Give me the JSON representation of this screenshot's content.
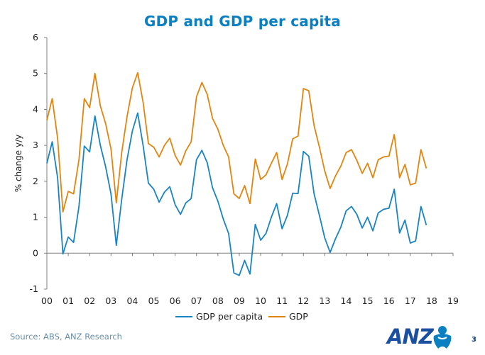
{
  "colors": {
    "title": "#0a7fc1",
    "gdp_per_capita": "#1a83c2",
    "gdp": "#e0860f",
    "brand": "#1b4fa0",
    "accent": "#0a7fc1"
  },
  "footer": {
    "source": "Source: ABS, ANZ Research",
    "page_number": "3",
    "logo_text": "ANZ"
  },
  "chart_data": {
    "type": "line",
    "title": "GDP and GDP per capita",
    "xlabel": "",
    "ylabel": "% change y/y",
    "xlim": [
      0,
      19
    ],
    "ylim": [
      -1,
      6
    ],
    "yticks": [
      -1,
      0,
      1,
      2,
      3,
      4,
      5,
      6
    ],
    "xtick_labels": [
      "00",
      "01",
      "02",
      "03",
      "04",
      "05",
      "06",
      "07",
      "08",
      "09",
      "10",
      "11",
      "12",
      "13",
      "14",
      "15",
      "16",
      "17",
      "18",
      "19"
    ],
    "grid": false,
    "legend": "bottom-center",
    "series": [
      {
        "name": "GDP per capita",
        "x": [
          0,
          0.25,
          0.5,
          0.75,
          1,
          1.25,
          1.5,
          1.75,
          2,
          2.25,
          2.5,
          2.75,
          3,
          3.25,
          3.5,
          3.75,
          4,
          4.25,
          4.5,
          4.75,
          5,
          5.25,
          5.5,
          5.75,
          6,
          6.25,
          6.5,
          6.75,
          7,
          7.25,
          7.5,
          7.75,
          8,
          8.25,
          8.5,
          8.75,
          9,
          9.25,
          9.5,
          9.75,
          10,
          10.25,
          10.5,
          10.75,
          11,
          11.25,
          11.5,
          11.75,
          12,
          12.25,
          12.5,
          12.75,
          13,
          13.25,
          13.5,
          13.75,
          14,
          14.25,
          14.5,
          14.75,
          15,
          15.25,
          15.5,
          15.75,
          16,
          16.25,
          16.5,
          16.75,
          17,
          17.25,
          17.5,
          17.75
        ],
        "values": [
          2.5,
          3.1,
          2.1,
          -0.02,
          0.45,
          0.3,
          1.3,
          2.98,
          2.82,
          3.82,
          3.0,
          2.4,
          1.65,
          0.22,
          1.5,
          2.6,
          3.4,
          3.9,
          3.0,
          1.95,
          1.78,
          1.42,
          1.7,
          1.85,
          1.35,
          1.08,
          1.4,
          1.52,
          2.6,
          2.86,
          2.52,
          1.82,
          1.45,
          0.95,
          0.55,
          -0.55,
          -0.62,
          -0.2,
          -0.58,
          0.8,
          0.36,
          0.55,
          1.0,
          1.38,
          0.68,
          1.05,
          1.67,
          1.66,
          2.83,
          2.7,
          1.65,
          1.05,
          0.42,
          0.02,
          0.4,
          0.72,
          1.18,
          1.3,
          1.08,
          0.7,
          1.0,
          0.62,
          1.12,
          1.22,
          1.25,
          1.78,
          0.56,
          0.92,
          0.28,
          0.34,
          1.3,
          0.78
        ]
      },
      {
        "name": "GDP",
        "x": [
          0,
          0.25,
          0.5,
          0.75,
          1,
          1.25,
          1.5,
          1.75,
          2,
          2.25,
          2.5,
          2.75,
          3,
          3.25,
          3.5,
          3.75,
          4,
          4.25,
          4.5,
          4.75,
          5,
          5.25,
          5.5,
          5.75,
          6,
          6.25,
          6.5,
          6.75,
          7,
          7.25,
          7.5,
          7.75,
          8,
          8.25,
          8.5,
          8.75,
          9,
          9.25,
          9.5,
          9.75,
          10,
          10.25,
          10.5,
          10.75,
          11,
          11.25,
          11.5,
          11.75,
          12,
          12.25,
          12.5,
          12.75,
          13,
          13.25,
          13.5,
          13.75,
          14,
          14.25,
          14.5,
          14.75,
          15,
          15.25,
          15.5,
          15.75,
          16,
          16.25,
          16.5,
          16.75,
          17,
          17.25,
          17.5,
          17.75
        ],
        "values": [
          3.7,
          4.3,
          3.2,
          1.15,
          1.72,
          1.65,
          2.6,
          4.3,
          4.05,
          5.0,
          4.1,
          3.6,
          2.9,
          1.4,
          2.8,
          3.8,
          4.6,
          5.02,
          4.2,
          3.05,
          2.95,
          2.68,
          3.0,
          3.2,
          2.72,
          2.45,
          2.85,
          3.1,
          4.35,
          4.75,
          4.42,
          3.75,
          3.45,
          3.0,
          2.68,
          1.65,
          1.52,
          1.88,
          1.38,
          2.62,
          2.05,
          2.18,
          2.5,
          2.8,
          2.05,
          2.48,
          3.18,
          3.26,
          4.58,
          4.52,
          3.55,
          2.95,
          2.28,
          1.8,
          2.15,
          2.42,
          2.8,
          2.88,
          2.58,
          2.22,
          2.5,
          2.1,
          2.6,
          2.68,
          2.7,
          3.3,
          2.1,
          2.47,
          1.9,
          1.95,
          2.88,
          2.36
        ]
      }
    ]
  }
}
